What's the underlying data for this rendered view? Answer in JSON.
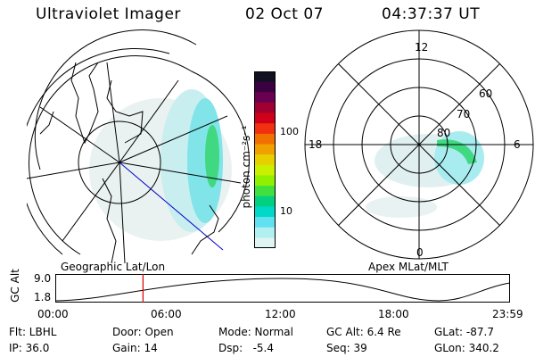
{
  "header": {
    "instrument": "Ultraviolet Imager",
    "date": "02 Oct 07",
    "time": "04:37:37 UT"
  },
  "colorbar": {
    "unit_label": "photon cm⁻²s⁻¹",
    "ticks": [
      "100",
      "10"
    ],
    "colors": [
      "#101020",
      "#3a0040",
      "#6a0050",
      "#a00030",
      "#d0001a",
      "#f03010",
      "#f07000",
      "#f0a000",
      "#e8d000",
      "#c8f000",
      "#90f000",
      "#40e040",
      "#00d080",
      "#00d8c8",
      "#60e0f0",
      "#b0f0f0",
      "#e0f4f4"
    ]
  },
  "geo_panel": {
    "label": "Geographic Lat/Lon"
  },
  "apex_panel": {
    "label": "Apex MLat/MLT",
    "mlt_labels": {
      "top": "12",
      "left": "18",
      "right": "6",
      "bottom": "0"
    },
    "lat_labels": [
      "60",
      "70",
      "80"
    ]
  },
  "altitude_plot": {
    "ylabel": "GC Alt",
    "yticks": [
      "9.0",
      "1.8"
    ],
    "xticks": [
      "00:00",
      "06:00",
      "12:00",
      "18:00",
      "23:59"
    ],
    "marker_hour": 4.63
  },
  "status": {
    "flt": "Flt: LBHL",
    "door": "Door: Open",
    "mode": "Mode: Normal",
    "gc_alt": "GC Alt: 6.4 Re",
    "glat": "GLat: -87.7",
    "ip": "IP: 36.0",
    "gain": "Gain: 14",
    "dsp": "Dsp:   -5.4",
    "seq": "Seq: 39",
    "glon": "GLon: 340.2"
  }
}
